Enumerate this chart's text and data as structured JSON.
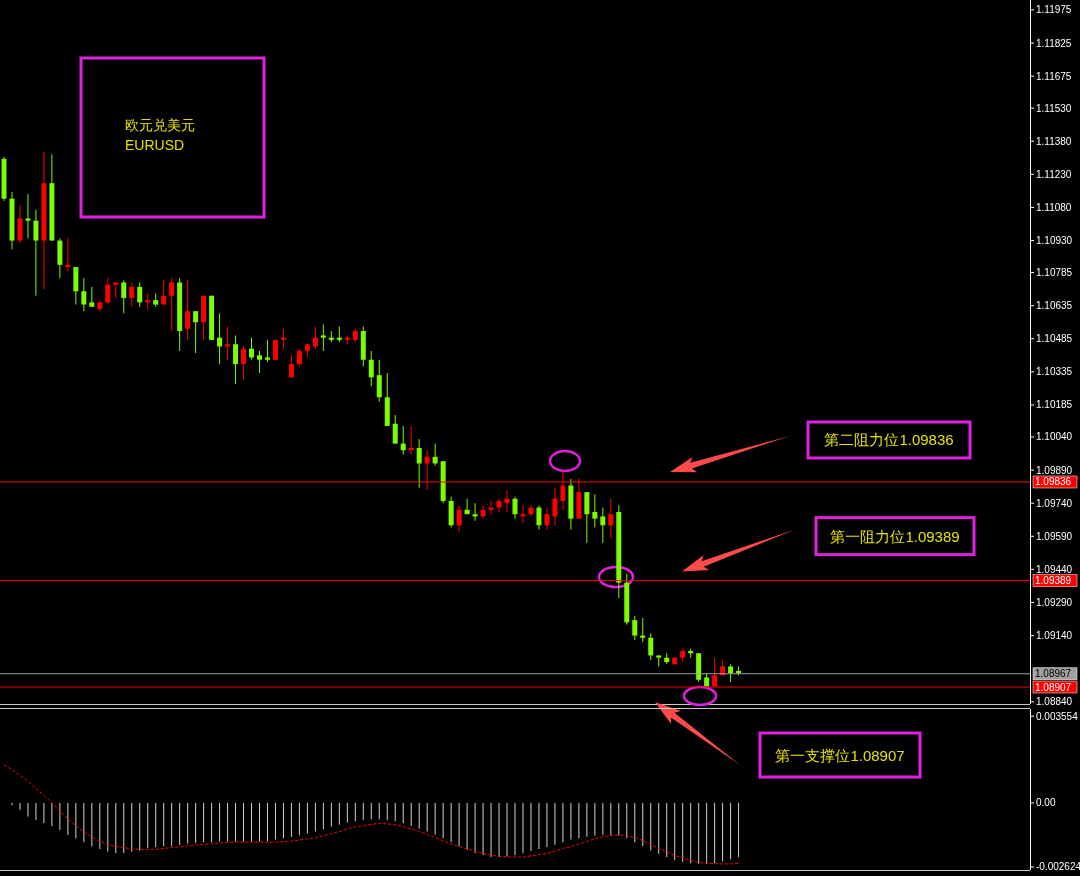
{
  "chart_data": [
    {
      "type": "candlestick",
      "categories": [
        null,
        null,
        null,
        null,
        null,
        null,
        null,
        null,
        null,
        null,
        null,
        null,
        null,
        null,
        null,
        null,
        null,
        null,
        null,
        null,
        null,
        null,
        null,
        null,
        null,
        null,
        null,
        null,
        null,
        null,
        null,
        null,
        null,
        null,
        null,
        null,
        null,
        null,
        null,
        null,
        null,
        null,
        null,
        null,
        null,
        null,
        null,
        null,
        null,
        null,
        null,
        null,
        null,
        null,
        null,
        null,
        null,
        null,
        null,
        null,
        null,
        null,
        null,
        null,
        null,
        null,
        null,
        null,
        null,
        null,
        null,
        null,
        null,
        null,
        null,
        null,
        null,
        null,
        null,
        null,
        null,
        null,
        null,
        null,
        null,
        null,
        null,
        null,
        null,
        null,
        null,
        null,
        null,
        null,
        null,
        null,
        null,
        null,
        null,
        null,
        null,
        null,
        null,
        null,
        null,
        null,
        null,
        null,
        null,
        null,
        null,
        null,
        null,
        null,
        null,
        null,
        null,
        null,
        null,
        null,
        null,
        null,
        null,
        null,
        null,
        null,
        null,
        null,
        null
      ],
      "ohlc": [
        [
          1.113,
          1.1131,
          1.1111,
          1.1112
        ],
        [
          1.1112,
          1.1115,
          1.1089,
          1.1093
        ],
        [
          1.1093,
          1.1109,
          1.1092,
          1.1103
        ],
        [
          1.1103,
          1.1114,
          1.1094,
          1.1102
        ],
        [
          1.1102,
          1.1107,
          1.1068,
          1.1093
        ],
        [
          1.1093,
          1.1133,
          1.1071,
          1.1119
        ],
        [
          1.1119,
          1.1132,
          1.1093,
          1.1093
        ],
        [
          1.1093,
          1.1094,
          1.1076,
          1.1082
        ],
        [
          1.1081,
          1.1094,
          1.1079,
          1.1082
        ],
        [
          1.1081,
          1.1081,
          1.1064,
          1.107
        ],
        [
          1.107,
          1.1076,
          1.1061,
          1.1064
        ],
        [
          1.1065,
          1.1072,
          1.1063,
          1.1063
        ],
        [
          1.1062,
          1.1066,
          1.1061,
          1.1065
        ],
        [
          1.1065,
          1.1076,
          1.1064,
          1.1073
        ],
        [
          1.1073,
          1.1074,
          1.1067,
          1.1074
        ],
        [
          1.1074,
          1.1075,
          1.106,
          1.1067
        ],
        [
          1.1067,
          1.1074,
          1.1063,
          1.1072
        ],
        [
          1.1072,
          1.1074,
          1.1063,
          1.1065
        ],
        [
          1.1065,
          1.1069,
          1.1062,
          1.1066
        ],
        [
          1.1066,
          1.1069,
          1.1063,
          1.1064
        ],
        [
          1.1064,
          1.1075,
          1.1064,
          1.1068
        ],
        [
          1.1068,
          1.1076,
          1.1052,
          1.1074
        ],
        [
          1.1074,
          1.1076,
          1.1043,
          1.1052
        ],
        [
          1.1053,
          1.1075,
          1.1048,
          1.1061
        ],
        [
          1.1061,
          1.1061,
          1.1042,
          1.1056
        ],
        [
          1.1056,
          1.1068,
          1.1048,
          1.1068
        ],
        [
          1.1068,
          1.1068,
          1.1048,
          1.1048
        ],
        [
          1.1049,
          1.106,
          1.1037,
          1.1045
        ],
        [
          1.1045,
          1.1054,
          1.1039,
          1.1046
        ],
        [
          1.1046,
          1.105,
          1.1028,
          1.1037
        ],
        [
          1.1037,
          1.1045,
          1.103,
          1.1044
        ],
        [
          1.1044,
          1.1049,
          1.1039,
          1.104
        ],
        [
          1.1041,
          1.1043,
          1.1033,
          1.1039
        ],
        [
          1.104,
          1.1048,
          1.1038,
          1.1039
        ],
        [
          1.1039,
          1.1048,
          1.1039,
          1.1048
        ],
        [
          1.1048,
          1.1053,
          1.1044,
          1.1049
        ],
        [
          1.1031,
          1.1041,
          1.1031,
          1.1037
        ],
        [
          1.1037,
          1.1044,
          1.1036,
          1.1043
        ],
        [
          1.1043,
          1.1046,
          1.104,
          1.1046
        ],
        [
          1.1045,
          1.1054,
          1.1044,
          1.1049
        ],
        [
          1.105,
          1.1055,
          1.1043,
          1.1049
        ],
        [
          1.1049,
          1.1052,
          1.1047,
          1.1048
        ],
        [
          1.1049,
          1.1054,
          1.1047,
          1.1048
        ],
        [
          1.1048,
          1.105,
          1.1046,
          1.1049
        ],
        [
          1.1048,
          1.1053,
          1.1047,
          1.1052
        ],
        [
          1.1052,
          1.1054,
          1.1036,
          1.1039
        ],
        [
          1.1039,
          1.1043,
          1.1027,
          1.1031
        ],
        [
          1.1032,
          1.1039,
          1.102,
          1.1022
        ],
        [
          1.1022,
          1.1033,
          1.1009,
          1.1009
        ],
        [
          1.101,
          1.1014,
          1.1001,
          1.1001
        ],
        [
          1.1001,
          1.1009,
          1.0996,
          1.0998
        ],
        [
          1.0998,
          1.1009,
          1.0996,
          1.0999
        ],
        [
          1.0999,
          1.1003,
          1.0981,
          1.0992
        ],
        [
          1.0992,
          1.0998,
          1.098,
          1.0995
        ],
        [
          1.0995,
          1.1001,
          1.0991,
          1.0992
        ],
        [
          1.0993,
          1.0993,
          1.0974,
          1.0975
        ],
        [
          1.0975,
          1.0977,
          1.0963,
          1.0964
        ],
        [
          1.0964,
          1.0973,
          1.0961,
          1.0971
        ],
        [
          1.0971,
          1.0976,
          1.0969,
          1.0969
        ],
        [
          1.0969,
          1.0974,
          1.0966,
          1.0968
        ],
        [
          1.0968,
          1.0973,
          1.0967,
          1.0971
        ],
        [
          1.0971,
          1.0975,
          1.0969,
          1.0972
        ],
        [
          1.0972,
          1.0976,
          1.097,
          1.0975
        ],
        [
          1.0974,
          1.098,
          1.097,
          1.0976
        ],
        [
          1.0976,
          1.0977,
          1.0967,
          1.0969
        ],
        [
          1.0968,
          1.0973,
          1.0965,
          1.0969
        ],
        [
          1.0969,
          1.0973,
          1.0968,
          1.0972
        ],
        [
          1.0972,
          1.0973,
          1.0962,
          1.0964
        ],
        [
          1.0964,
          1.0972,
          1.0962,
          1.0969
        ],
        [
          1.0968,
          1.0981,
          1.0964,
          1.0976
        ],
        [
          1.0975,
          1.0989,
          1.0971,
          1.0982
        ],
        [
          1.0982,
          1.0985,
          1.0962,
          1.0967
        ],
        [
          1.0967,
          1.0985,
          1.0967,
          1.0979
        ],
        [
          1.0979,
          1.0979,
          1.0956,
          1.0969
        ],
        [
          1.097,
          1.0978,
          1.0963,
          1.0967
        ],
        [
          1.0968,
          1.0972,
          1.0956,
          1.0964
        ],
        [
          1.0964,
          1.0976,
          1.0958,
          1.0969
        ],
        [
          1.097,
          1.0973,
          1.0931,
          1.0938
        ],
        [
          1.0938,
          1.0942,
          1.0919,
          1.092
        ],
        [
          1.0921,
          1.0923,
          1.0912,
          1.0914
        ],
        [
          1.0914,
          1.0922,
          1.0911,
          1.0913
        ],
        [
          1.0913,
          1.0915,
          1.0903,
          1.0905
        ],
        [
          1.0905,
          1.0905,
          1.09,
          1.0904
        ],
        [
          1.0904,
          1.0906,
          1.0901,
          1.0902
        ],
        [
          1.0901,
          1.0904,
          1.0901,
          1.0904
        ],
        [
          1.0904,
          1.0908,
          1.0902,
          1.0907
        ],
        [
          1.0907,
          1.0908,
          1.0904,
          1.0906
        ],
        [
          1.0906,
          1.0906,
          1.0893,
          1.0894
        ],
        [
          1.0895,
          1.0897,
          1.0891,
          1.0891
        ],
        [
          1.0891,
          1.0904,
          1.0891,
          1.0896
        ],
        [
          1.0896,
          1.0903,
          1.0896,
          1.09
        ],
        [
          1.09,
          1.0901,
          1.0893,
          1.0897
        ],
        [
          1.0898,
          1.09,
          1.0896,
          1.0897
        ],
        null,
        null,
        null,
        null,
        null,
        null,
        null,
        null,
        null,
        null,
        null,
        null,
        null,
        null,
        null,
        null,
        null,
        null,
        null,
        null,
        null,
        null,
        null,
        null,
        null,
        null,
        null,
        null,
        null,
        null,
        null,
        null,
        null,
        null,
        null,
        null
      ],
      "colors": [
        "#7cfc00",
        "#7cfc00",
        "#ff0000",
        "#7cfc00",
        "#7cfc00",
        "#ff0000",
        "#7cfc00",
        "#7cfc00",
        "#ff0000",
        "#7cfc00",
        "#7cfc00",
        "#7cfc00",
        "#ff0000",
        "#ff0000",
        "#ff0000",
        "#7cfc00",
        "#ff0000",
        "#7cfc00",
        "#ff0000",
        "#7cfc00",
        "#ff0000",
        "#ff0000",
        "#7cfc00",
        "#ff0000",
        "#7cfc00",
        "#ff0000",
        "#7cfc00",
        "#7cfc00",
        "#ff0000",
        "#7cfc00",
        "#ff0000",
        "#7cfc00",
        "#7cfc00",
        "#7cfc00",
        "#ff0000",
        "#ff0000",
        "#ff0000",
        "#ff0000",
        "#ff0000",
        "#ff0000",
        "#7cfc00",
        "#7cfc00",
        "#7cfc00",
        "#ff0000",
        "#ff0000",
        "#7cfc00",
        "#7cfc00",
        "#7cfc00",
        "#7cfc00",
        "#7cfc00",
        "#7cfc00",
        "#ff0000",
        "#7cfc00",
        "#ff0000",
        "#7cfc00",
        "#7cfc00",
        "#7cfc00",
        "#ff0000",
        "#7cfc00",
        "#7cfc00",
        "#ff0000",
        "#ff0000",
        "#ff0000",
        "#ff0000",
        "#7cfc00",
        "#ff0000",
        "#ff0000",
        "#7cfc00",
        "#ff0000",
        "#ff0000",
        "#ff0000",
        "#7cfc00",
        "#ff0000",
        "#7cfc00",
        "#7cfc00",
        "#7cfc00",
        "#ff0000",
        "#7cfc00",
        "#7cfc00",
        "#7cfc00",
        "#7cfc00",
        "#7cfc00",
        "#7cfc00",
        "#7cfc00",
        "#ff0000",
        "#ff0000",
        "#7cfc00",
        "#7cfc00",
        "#7cfc00",
        "#ff0000",
        "#ff0000",
        "#7cfc00",
        "#7cfc00",
        null,
        null,
        null,
        null,
        null,
        null,
        null,
        null,
        null,
        null,
        null,
        null,
        null,
        null,
        null,
        null,
        null,
        null,
        null,
        null,
        null,
        null,
        null,
        null,
        null,
        null,
        null,
        null,
        null,
        null,
        null,
        null,
        null,
        null,
        null,
        null
      ],
      "ylim": [
        1.0883,
        1.1202
      ],
      "yticks": [
        1.11975,
        1.11825,
        1.11675,
        {
          "value": 1.1153,
          "label": "1.11530"
        },
        {
          "value": 1.1138,
          "label": "1.11380"
        },
        {
          "value": 1.1123,
          "label": "1.11230"
        },
        {
          "value": 1.1108,
          "label": "1.11080"
        },
        {
          "value": 1.1093,
          "label": "1.10930"
        },
        1.10785,
        1.10635,
        1.10485,
        1.10335,
        1.10185,
        {
          "value": 1.1004,
          "label": "1.10040"
        },
        {
          "value": 1.0989,
          "label": "1.09890"
        },
        {
          "value": 1.0974,
          "label": "1.09740"
        },
        {
          "value": 1.0959,
          "label": "1.09590"
        },
        {
          "value": 1.0944,
          "label": "1.09440"
        },
        {
          "value": 1.0929,
          "label": "1.09290"
        },
        {
          "value": 1.0914,
          "label": "1.09140"
        },
        {
          "value": 1.0884,
          "label": "1.08840"
        }
      ],
      "ref_lines": [
        {
          "axis": "y",
          "value": 1.09836,
          "label": "1.09836",
          "color": "#ff0000"
        },
        {
          "axis": "y",
          "value": 1.09389,
          "label": "1.09389",
          "color": "#ff0000"
        },
        {
          "axis": "y",
          "value": 1.08967,
          "label": "1.08967",
          "color": "#a0a0a0"
        },
        {
          "axis": "y",
          "value": 1.08907,
          "label": "1.08907",
          "color": "#ff0000"
        }
      ],
      "annotations": [
        "欧元兑美元",
        "EURUSD",
        {
          "text": "第二阻力位1.09836",
          "y": 1.09836
        },
        {
          "text": "第一阻力位1.09389",
          "y": 1.09389
        },
        "第一支撑位1.08907"
      ]
    },
    {
      "type": "bar",
      "categories": [
        null,
        null,
        null,
        null,
        null,
        null,
        null,
        null,
        null,
        null,
        null,
        null,
        null,
        null,
        null,
        null,
        null,
        null,
        null,
        null,
        null,
        null,
        null,
        null,
        null,
        null,
        null,
        null,
        null,
        null,
        null,
        null,
        null,
        null,
        null,
        null,
        null,
        null,
        null,
        null,
        null,
        null,
        null,
        null,
        null,
        null,
        null,
        null,
        null,
        null,
        null,
        null,
        null,
        null,
        null,
        null,
        null,
        null,
        null,
        null,
        null,
        null,
        null,
        null,
        null,
        null,
        null,
        null,
        null,
        null,
        null,
        null,
        null,
        null,
        null,
        null,
        null,
        null,
        null,
        null,
        null,
        null,
        null,
        null,
        null,
        null,
        null,
        null,
        null,
        null,
        null,
        null,
        null,
        null,
        null,
        null,
        null,
        null,
        null,
        null,
        null,
        null,
        null,
        null,
        null,
        null,
        null,
        null,
        null,
        null,
        null,
        null,
        null,
        null,
        null,
        null,
        null,
        null,
        null,
        null,
        null,
        null,
        null,
        null,
        null,
        null,
        null,
        null,
        null
      ],
      "series": [
        {
          "color": "#d0d0d0",
          "values": [
            null,
            -0.0001,
            -0.00028,
            -0.00056,
            -0.0007,
            -0.00083,
            -0.00095,
            -0.00111,
            -0.00131,
            -0.00145,
            -0.00161,
            -0.00178,
            -0.00189,
            -0.002,
            -0.00206,
            -0.00206,
            -0.002,
            -0.00195,
            -0.00186,
            -0.00181,
            -0.00178,
            -0.00178,
            -0.00172,
            -0.00167,
            -0.00164,
            -0.00161,
            -0.00161,
            -0.00158,
            -0.00158,
            -0.00158,
            -0.00158,
            -0.00158,
            -0.00158,
            -0.00156,
            -0.0015,
            -0.00145,
            -0.00139,
            -0.00133,
            -0.00125,
            -0.00117,
            -0.00108,
            -0.00097,
            -0.00089,
            -0.00081,
            -0.00075,
            -0.0007,
            -0.00067,
            -0.00067,
            -0.0007,
            -0.00075,
            -0.00083,
            -0.00095,
            -0.00106,
            -0.00117,
            -0.00131,
            -0.00145,
            -0.00161,
            -0.00178,
            -0.00192,
            -0.00206,
            -0.00214,
            -0.00222,
            -0.00222,
            -0.0022,
            -0.00214,
            -0.00206,
            -0.00197,
            -0.00189,
            -0.00181,
            -0.00172,
            -0.00161,
            -0.0015,
            -0.00145,
            -0.00139,
            -0.00133,
            -0.00131,
            -0.00131,
            -0.00133,
            -0.00145,
            -0.00161,
            -0.00178,
            -0.00195,
            -0.00209,
            -0.00222,
            -0.00234,
            -0.00242,
            -0.00247,
            -0.0025,
            -0.0025,
            -0.00247,
            -0.00239,
            -0.00231,
            -0.00222,
            null,
            null,
            null,
            null,
            null,
            null,
            null,
            null,
            null,
            null,
            null,
            null,
            null,
            null,
            null,
            null,
            null,
            null,
            null,
            null,
            null,
            null,
            null,
            null,
            null,
            null,
            null,
            null,
            null,
            null,
            null,
            null,
            null,
            null,
            null,
            null
          ]
        },
        {
          "type": "line",
          "color": "#ff0000",
          "line_style": "dashed",
          "values": [
            0.00156,
            0.00136,
            0.00114,
            0.0009,
            0.0006,
            0.00031,
            0,
            -0.00033,
            -0.00065,
            -0.00094,
            -0.0012,
            -0.0014,
            -0.00156,
            -0.00172,
            -0.00178,
            -0.00183,
            -0.00188,
            -0.0019,
            -0.00192,
            -0.0019,
            -0.00187,
            -0.00183,
            -0.0018,
            -0.00176,
            -0.00172,
            -0.0017,
            -0.00167,
            -0.00164,
            -0.00162,
            -0.00161,
            -0.00161,
            -0.00161,
            -0.00161,
            -0.00161,
            -0.00161,
            -0.00159,
            -0.00156,
            -0.00152,
            -0.00147,
            -0.00144,
            -0.00133,
            -0.00126,
            -0.00117,
            -0.00107,
            -0.00098,
            -0.00093,
            -0.00088,
            -0.00084,
            -0.00086,
            -0.0009,
            -0.00097,
            -0.00106,
            -0.00117,
            -0.00129,
            -0.00142,
            -0.00155,
            -0.00168,
            -0.00179,
            -0.00188,
            -0.00197,
            -0.00207,
            -0.00214,
            -0.00219,
            -0.00222,
            -0.00222,
            -0.00222,
            -0.00217,
            -0.00212,
            -0.00207,
            -0.00197,
            -0.00186,
            -0.0018,
            -0.00168,
            -0.00158,
            -0.00147,
            -0.00139,
            -0.00134,
            -0.00132,
            -0.00133,
            -0.00142,
            -0.00154,
            -0.0017,
            -0.00186,
            -0.00201,
            -0.00215,
            -0.00226,
            -0.00235,
            -0.00244,
            -0.00247,
            -0.00249,
            -0.0025,
            -0.0025,
            -0.00248,
            null,
            null,
            null,
            null,
            null,
            null,
            null,
            null,
            null,
            null,
            null,
            null,
            null,
            null,
            null,
            null,
            null,
            null,
            null,
            null,
            null,
            null,
            null,
            null,
            null,
            null,
            null,
            null,
            null,
            null,
            null,
            null,
            null,
            null,
            null,
            null
          ]
        }
      ],
      "ylim": [
        -0.00275,
        0.00385
      ],
      "yticks": [
        0.003554,
        {
          "value": 0,
          "label": "0.00"
        },
        -0.002624
      ]
    }
  ]
}
